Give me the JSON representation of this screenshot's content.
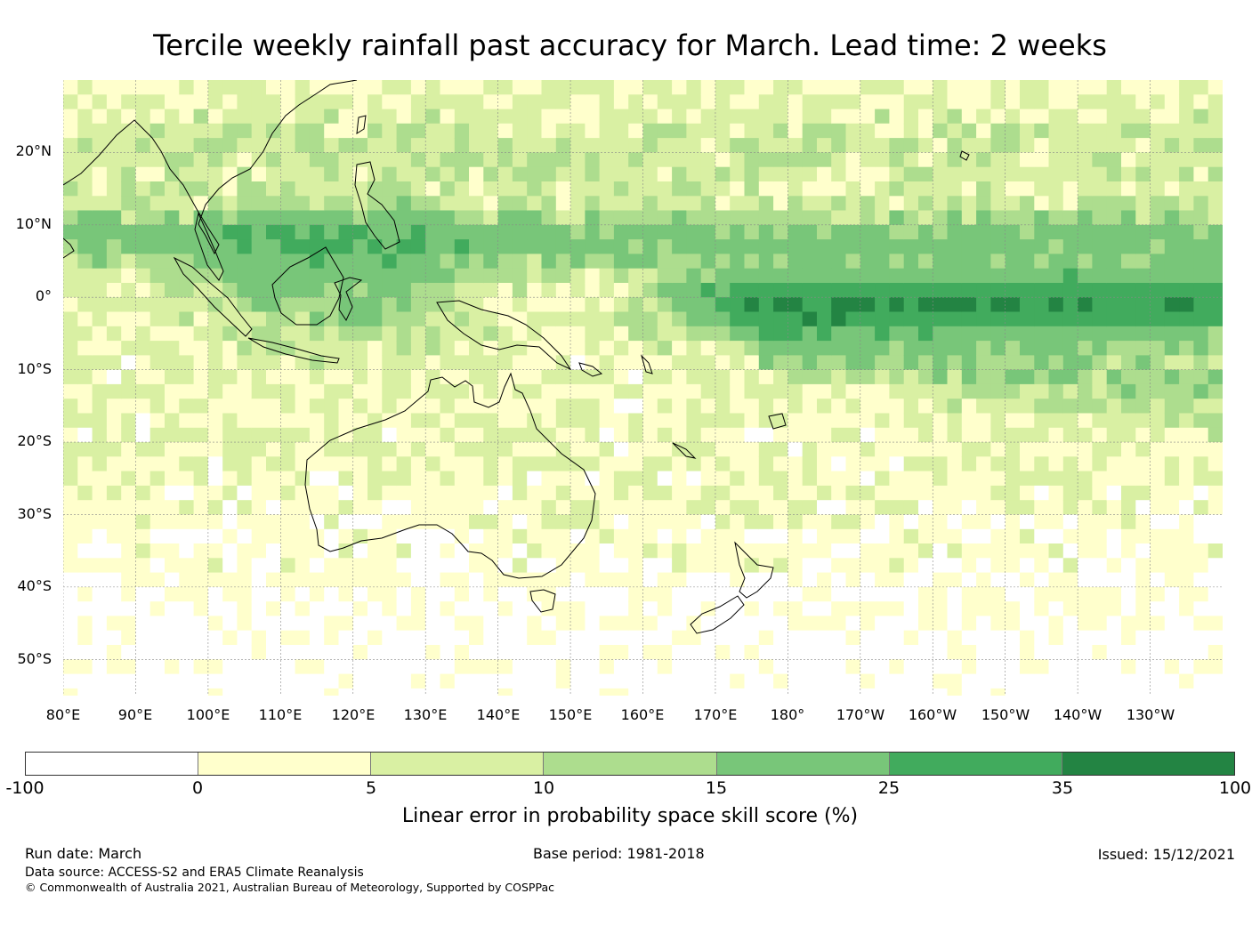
{
  "title": "Tercile weekly rainfall past accuracy for March. Lead time: 2 weeks",
  "map": {
    "lat_labels": [
      "20°N",
      "10°N",
      "0°",
      "10°S",
      "20°S",
      "30°S",
      "40°S",
      "50°S"
    ],
    "lon_labels": [
      "80°E",
      "90°E",
      "100°E",
      "110°E",
      "120°E",
      "130°E",
      "140°E",
      "150°E",
      "160°E",
      "170°E",
      "180°",
      "170°W",
      "160°W",
      "150°W",
      "140°W",
      "130°W"
    ],
    "extent": {
      "lon_min": 80,
      "lon_max": 240,
      "lat_min": -55,
      "lat_max": 30
    },
    "skill_levels_colors": [
      "#ffffff",
      "#ffffcc",
      "#d9f0a3",
      "#addd8e",
      "#78c679",
      "#41ab5d",
      "#238443"
    ]
  },
  "colorbar": {
    "ticks": [
      "-100",
      "0",
      "5",
      "10",
      "15",
      "25",
      "35",
      "100"
    ],
    "colors": [
      "#ffffff",
      "#ffffcc",
      "#d9f0a3",
      "#addd8e",
      "#78c679",
      "#41ab5d",
      "#238443"
    ],
    "label": "Linear error in probability space skill score (%)"
  },
  "footer": {
    "run_date": "Run date: March",
    "base_period": "Base period: 1981-2018",
    "issued": "Issued: 15/12/2021",
    "data_source": "Data source: ACCESS-S2 and ERA5 Climate Reanalysis",
    "copyright": "© Commonwealth of Australia 2021, Australian Bureau of Meteorology, Supported by COSPPac"
  }
}
